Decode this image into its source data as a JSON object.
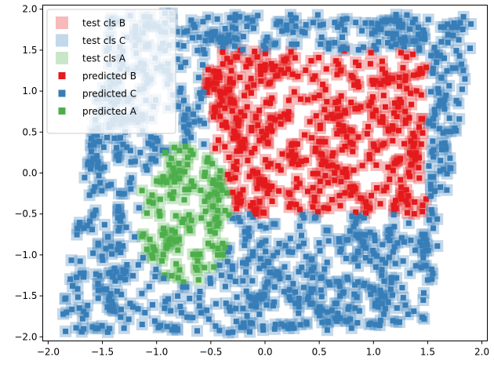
{
  "chart_data": {
    "type": "scatter",
    "title": "",
    "xlabel": "",
    "ylabel": "",
    "xlim": [
      -2.05,
      2.05
    ],
    "ylim": [
      -2.05,
      2.05
    ],
    "x_ticks": [
      "−2.0",
      "−1.5",
      "−1.0",
      "−0.5",
      "0.0",
      "0.5",
      "1.0",
      "1.5",
      "2.0"
    ],
    "y_ticks": [
      "−2.0",
      "−1.5",
      "−1.0",
      "−0.5",
      "0.0",
      "0.5",
      "1.0",
      "1.5",
      "2.0"
    ],
    "grid": false,
    "legend_position": "upper-left",
    "description_note": "Test points fill a parallelogram whose x range shifts upward with y; points are drawn as large semi-transparent squares (test) overlaid with small solid squares (predicted).",
    "region": {
      "parallelogram_corners": [
        [
          -1.9,
          -1.95
        ],
        [
          1.5,
          -1.75
        ],
        [
          1.95,
          1.95
        ],
        [
          -1.45,
          1.75
        ]
      ]
    },
    "series": [
      {
        "name": "test cls B",
        "kind": "test",
        "color": "#e41a1c",
        "alpha": 0.3,
        "region": "rectangle x∈[-0.55, 1.5], y∈[-0.5, 1.5] excluding the cls A ellipse",
        "x_range": [
          -0.55,
          1.5
        ],
        "y_range": [
          -0.5,
          1.5
        ]
      },
      {
        "name": "test cls C",
        "kind": "test",
        "color": "#377eb8",
        "alpha": 0.3,
        "region": "parallelogram background outside cls A and cls B"
      },
      {
        "name": "test cls A",
        "kind": "test",
        "color": "#4daf4a",
        "alpha": 0.3,
        "region": "ellipse centered at (-0.73, -0.5), radii ≈ (0.43, 0.85)",
        "center": [
          -0.73,
          -0.5
        ],
        "radii": [
          0.43,
          0.85
        ]
      },
      {
        "name": "predicted B",
        "kind": "predicted",
        "color": "#e41a1c",
        "alpha": 1.0
      },
      {
        "name": "predicted C",
        "kind": "predicted",
        "color": "#377eb8",
        "alpha": 1.0
      },
      {
        "name": "predicted A",
        "kind": "predicted",
        "color": "#4daf4a",
        "alpha": 1.0
      }
    ]
  }
}
